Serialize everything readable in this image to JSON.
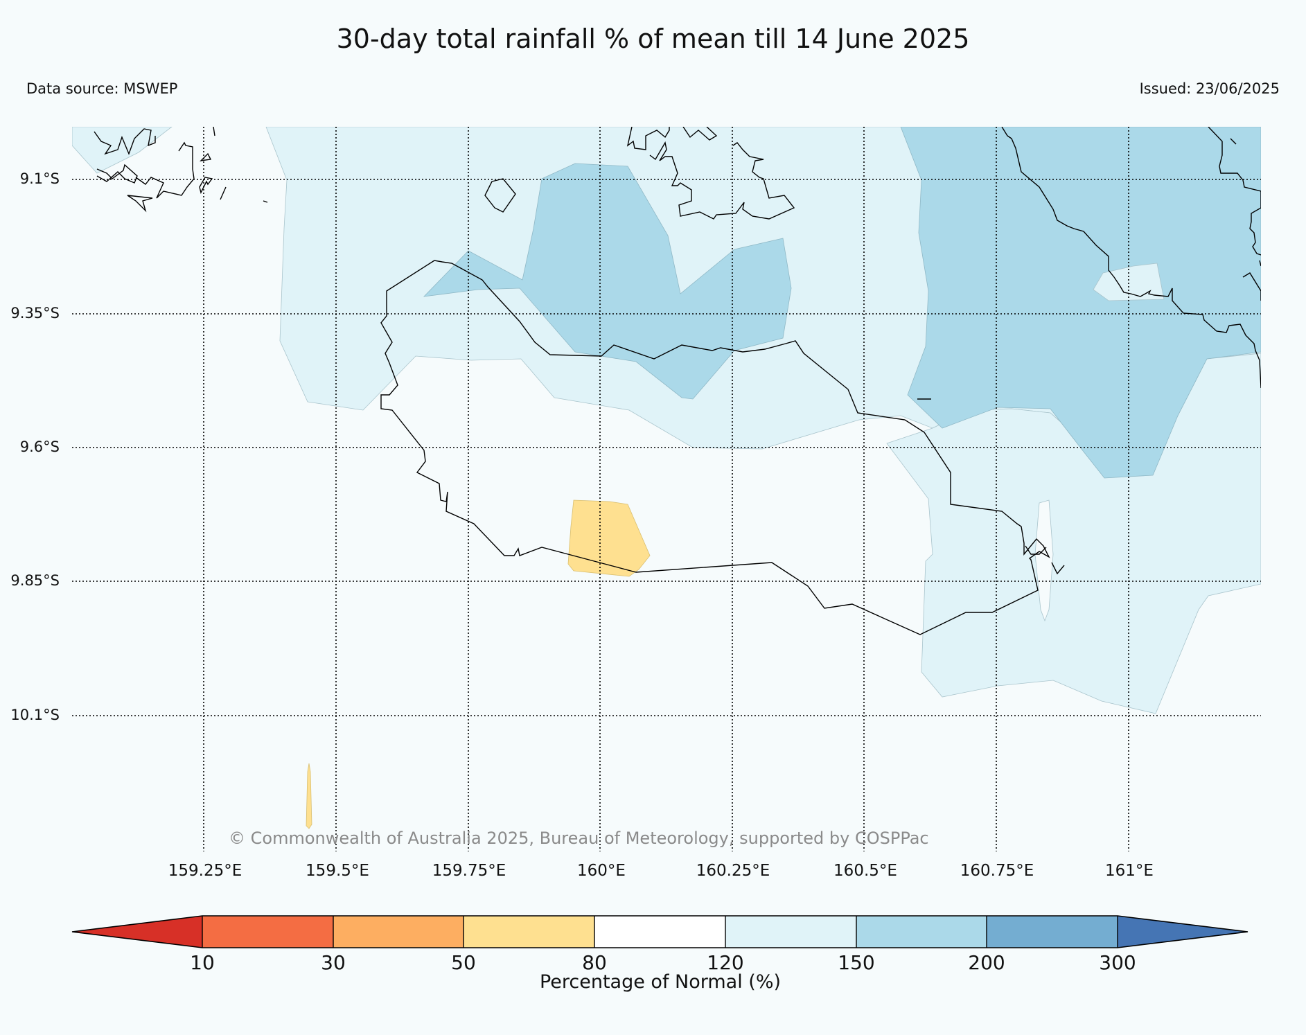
{
  "title": "30-day total rainfall % of mean till 14 June 2025",
  "source": "Data source: MSWEP",
  "issued": "Issued: 23/06/2025",
  "copyright": "© Commonwealth of Australia 2025, Bureau of Meteorology, supported by COSPPac",
  "map": {
    "lat_labels": [
      "9.1°S",
      "9.35°S",
      "9.6°S",
      "9.85°S",
      "10.1°S"
    ],
    "lon_labels": [
      "159.25°E",
      "159.5°E",
      "159.75°E",
      "160°E",
      "160.25°E",
      "160.5°E",
      "160.75°E",
      "161°E"
    ]
  },
  "colorbar": {
    "label": "Percentage of Normal (%)",
    "ticks": [
      "10",
      "30",
      "50",
      "80",
      "120",
      "150",
      "200",
      "300"
    ],
    "colors": [
      "#d73027",
      "#f46d43",
      "#fdae61",
      "#fee090",
      "#ffffff",
      "#e0f3f8",
      "#abd9e9",
      "#74add1",
      "#4575b4"
    ]
  }
}
